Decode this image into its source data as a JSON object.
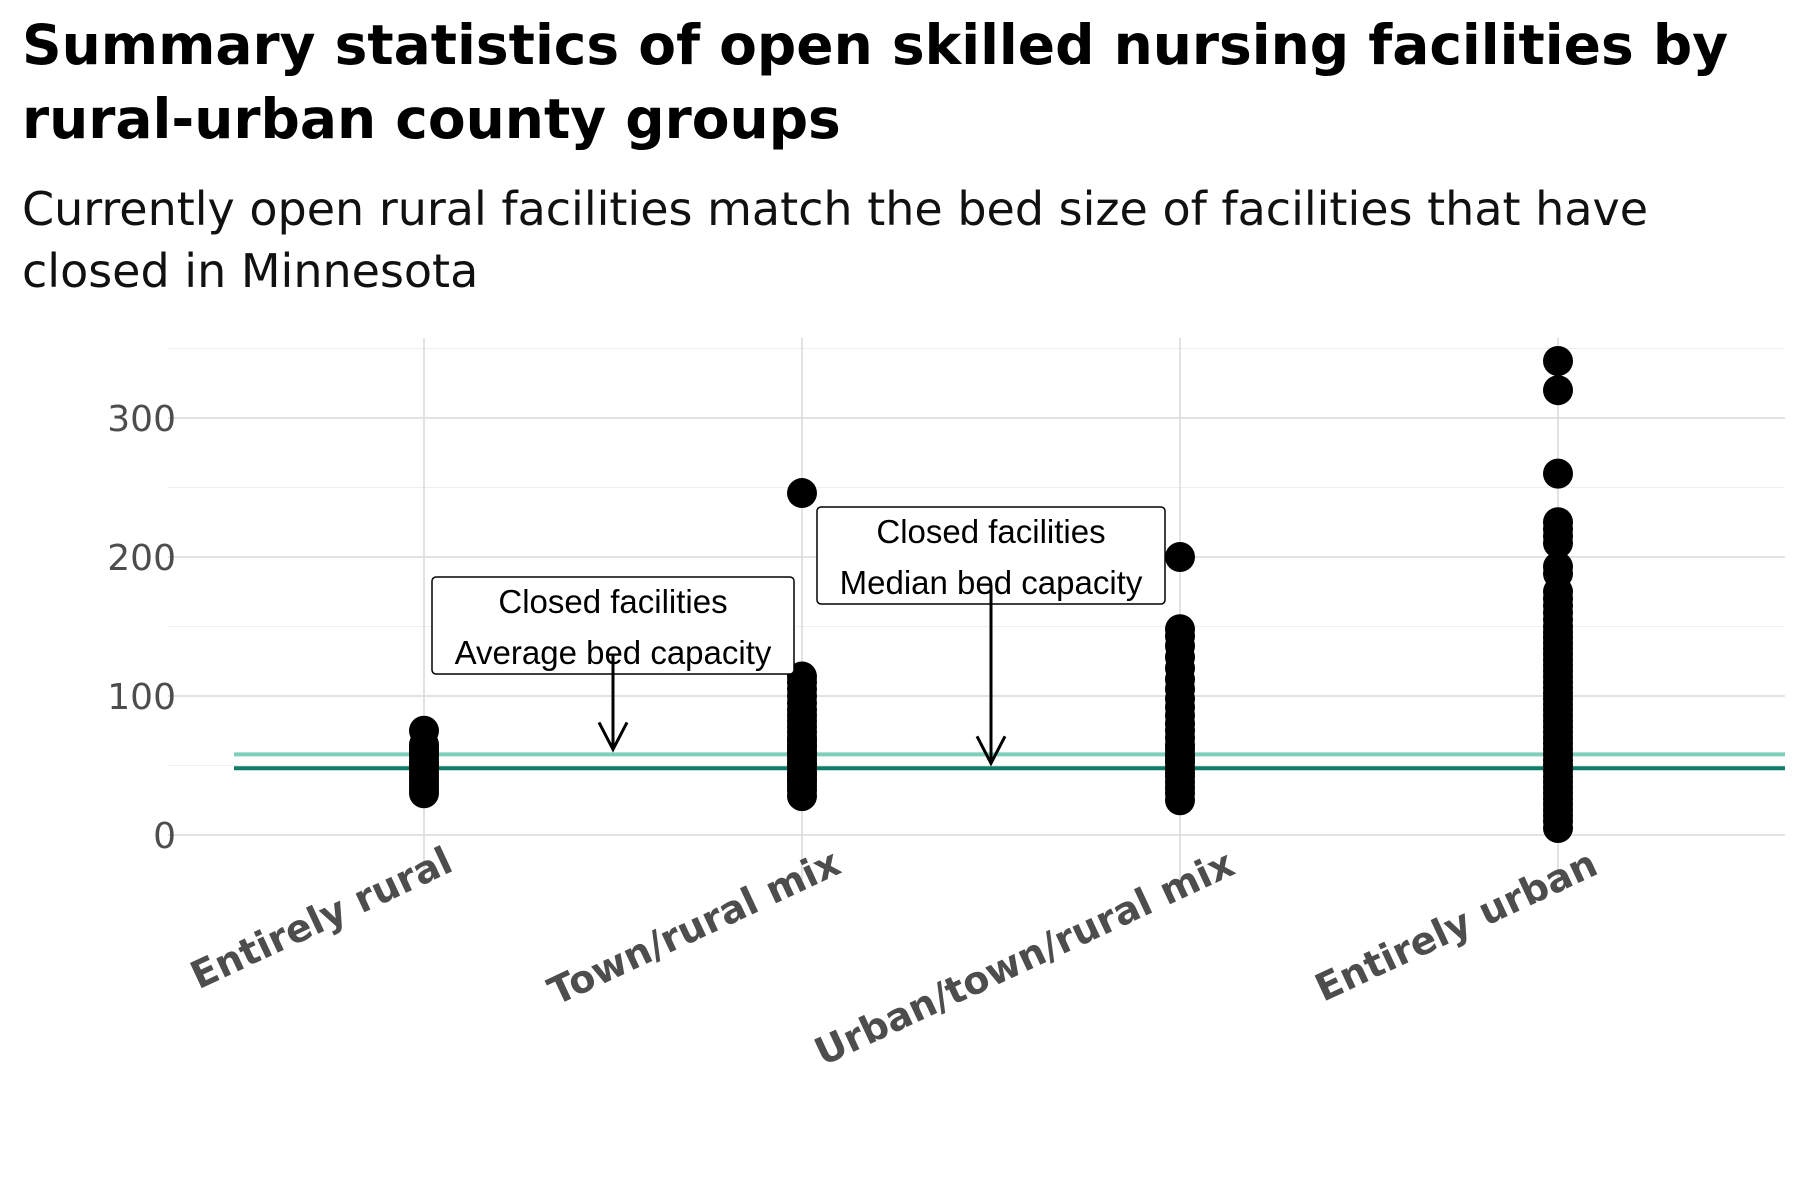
{
  "title": "Summary statistics of open skilled nursing facilities by rural-urban county groups",
  "subtitle": "Currently open rural facilities match the bed size of facilities that have closed in Minnesota",
  "chart_data": {
    "type": "scatter",
    "title": "Summary statistics of open skilled nursing facilities by rural-urban county groups",
    "subtitle": "Currently open rural facilities match the bed size of facilities that have closed in Minnesota",
    "xlabel": "",
    "ylabel": "",
    "categories": [
      "Entirely rural",
      "Town/rural mix",
      "Urban/town/rural mix",
      "Entirely urban"
    ],
    "ylim": [
      -8,
      355
    ],
    "yticks": [
      0,
      100,
      200,
      300
    ],
    "grid": true,
    "legend": "none",
    "series": [
      {
        "values": [
          [
            30,
            33,
            36,
            39,
            42,
            45,
            48,
            50,
            52,
            55,
            58,
            60,
            62,
            65,
            75
          ],
          [
            28,
            32,
            35,
            38,
            40,
            43,
            45,
            48,
            50,
            52,
            55,
            58,
            60,
            63,
            65,
            68,
            70,
            74,
            78,
            82,
            86,
            90,
            95,
            100,
            105,
            110,
            114,
            246
          ],
          [
            25,
            30,
            34,
            38,
            42,
            45,
            48,
            52,
            55,
            58,
            62,
            65,
            70,
            75,
            80,
            86,
            92,
            98,
            105,
            112,
            120,
            128,
            136,
            143,
            148,
            200
          ],
          [
            5,
            10,
            14,
            18,
            22,
            26,
            30,
            34,
            38,
            42,
            46,
            50,
            54,
            58,
            62,
            66,
            70,
            74,
            78,
            82,
            86,
            90,
            94,
            98,
            102,
            106,
            110,
            114,
            118,
            122,
            126,
            130,
            134,
            138,
            142,
            146,
            150,
            155,
            160,
            165,
            170,
            175,
            188,
            193,
            210,
            215,
            220,
            225,
            260,
            320,
            341
          ]
        ]
      }
    ],
    "reference_lines": [
      {
        "value": 58,
        "color": "#7fcdbb"
      },
      {
        "value": 48,
        "color": "#0e7c66"
      }
    ],
    "annotations": [
      {
        "lines": [
          "Closed facilities",
          "Average bed capacity"
        ],
        "arrow_to_y": 58
      },
      {
        "lines": [
          "Closed facilities",
          "Median bed capacity"
        ],
        "arrow_to_y": 48
      }
    ]
  },
  "colors": {
    "points": "#000000",
    "average_line": "#7fcdbb",
    "median_line": "#0e7c66",
    "grid": "#d9d9d9",
    "tick_text": "#4d4d4d"
  }
}
